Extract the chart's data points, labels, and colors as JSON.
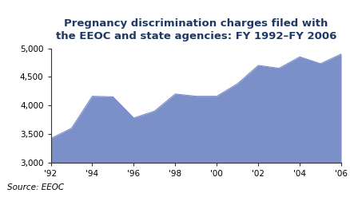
{
  "title_line1": "Pregnancy discrimination charges filed with",
  "title_line2": "the EEOC and state agencies: FY 1992–FY 2006",
  "source": "Source: EEOC",
  "years": [
    1992,
    1993,
    1994,
    1995,
    1996,
    1997,
    1998,
    1999,
    2000,
    2001,
    2002,
    2003,
    2004,
    2005,
    2006
  ],
  "values": [
    3420,
    3600,
    4160,
    4150,
    3780,
    3900,
    4200,
    4160,
    4160,
    4380,
    4700,
    4650,
    4850,
    4730,
    4900
  ],
  "x_ticks": [
    1992,
    1994,
    1996,
    1998,
    2000,
    2002,
    2004,
    2006
  ],
  "x_tick_labels": [
    "'92",
    "'94",
    "'96",
    "'98",
    "'00",
    "'02",
    "'04",
    "'06"
  ],
  "y_ticks": [
    3000,
    3500,
    4000,
    4500,
    5000
  ],
  "y_tick_labels": [
    "3,000",
    "3,500",
    "4,000",
    "4,500",
    "5,000"
  ],
  "ylim": [
    3000,
    5000
  ],
  "xlim": [
    1992,
    2006
  ],
  "fill_color": "#7b8fc9",
  "fill_alpha": 1.0,
  "title_color": "#1f3864",
  "title_fontsize": 9.5,
  "tick_fontsize": 7.5,
  "source_fontsize": 7.5,
  "background_color": "#ffffff",
  "border_color": "#333333"
}
